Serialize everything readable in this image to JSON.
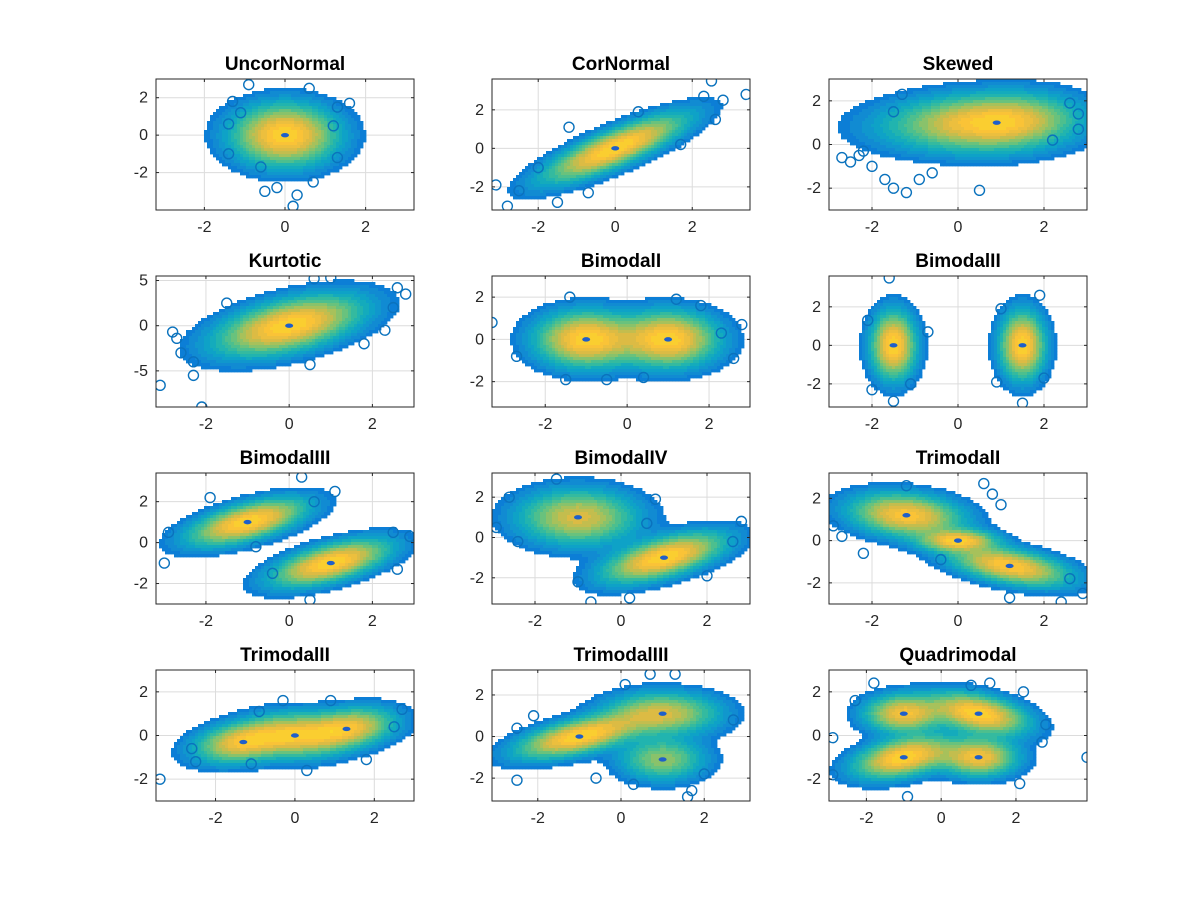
{
  "chart_data": [
    {
      "type": "scatter",
      "title": "UncorNormal",
      "xlim": [
        -3.2,
        3.2
      ],
      "ylim": [
        -4,
        3
      ],
      "xticks": [
        -2,
        0,
        2
      ],
      "xticklabels": [
        "-2",
        "0",
        "2"
      ],
      "yticks": [
        -2,
        0,
        2
      ],
      "yticklabels": [
        "-2",
        "0",
        "2"
      ],
      "grid": true,
      "components": [
        {
          "mx": 0,
          "my": 0,
          "sx": 0.75,
          "sy": 0.95,
          "rho": 0,
          "w": 1
        }
      ],
      "outliers": [
        [
          -0.9,
          2.7
        ],
        [
          -1.3,
          1.8
        ],
        [
          1.6,
          1.7
        ],
        [
          1.3,
          1.5
        ],
        [
          -1.1,
          1.2
        ],
        [
          -1.4,
          0.6
        ],
        [
          1.3,
          -1.2
        ],
        [
          -1.4,
          -1.0
        ],
        [
          0.7,
          -2.5
        ],
        [
          -0.5,
          -3.0
        ],
        [
          0.3,
          -3.2
        ],
        [
          0.2,
          -3.8
        ],
        [
          -0.2,
          -2.8
        ],
        [
          0.6,
          2.5
        ],
        [
          -0.6,
          -1.7
        ],
        [
          1.2,
          0.5
        ]
      ]
    },
    {
      "type": "scatter",
      "title": "CorNormal",
      "xlim": [
        -3.2,
        3.5
      ],
      "ylim": [
        -3.2,
        3.6
      ],
      "xticks": [
        -2,
        0,
        2
      ],
      "xticklabels": [
        "-2",
        "0",
        "2"
      ],
      "yticks": [
        -2,
        0,
        2
      ],
      "yticklabels": [
        "-2",
        "0",
        "2"
      ],
      "grid": true,
      "components": [
        {
          "mx": 0,
          "my": 0,
          "sx": 1.05,
          "sy": 1.0,
          "rho": 0.82,
          "w": 1
        }
      ],
      "outliers": [
        [
          3.4,
          2.8
        ],
        [
          2.5,
          3.5
        ],
        [
          2.8,
          2.5
        ],
        [
          2.3,
          2.7
        ],
        [
          -2.8,
          -3.0
        ],
        [
          -3.1,
          -1.9
        ],
        [
          -2.5,
          -2.2
        ],
        [
          -1.5,
          -2.8
        ],
        [
          -0.7,
          -2.3
        ],
        [
          0.6,
          1.9
        ],
        [
          1.7,
          0.2
        ],
        [
          -1.2,
          1.1
        ],
        [
          -2.0,
          -1.0
        ],
        [
          2.6,
          1.5
        ]
      ]
    },
    {
      "type": "scatter",
      "title": "Skewed",
      "xlim": [
        -3,
        3
      ],
      "ylim": [
        -3,
        3
      ],
      "xticks": [
        -2,
        0,
        2
      ],
      "xticklabels": [
        "-2",
        "0",
        "2"
      ],
      "yticks": [
        -2,
        0,
        2
      ],
      "yticklabels": [
        "-2",
        "0",
        "2"
      ],
      "grid": true,
      "components": [
        {
          "mx": 0.9,
          "my": 1.0,
          "sx": 1.05,
          "sy": 0.75,
          "rho": 0.1,
          "w": 1,
          "skewL": true
        }
      ],
      "outliers": [
        [
          -2.7,
          -0.6
        ],
        [
          -2.3,
          -0.5
        ],
        [
          -2.0,
          -1.0
        ],
        [
          -1.7,
          -1.6
        ],
        [
          -1.5,
          -2.0
        ],
        [
          -1.2,
          -2.2
        ],
        [
          -0.9,
          -1.6
        ],
        [
          -2.2,
          -0.3
        ],
        [
          -1.3,
          2.3
        ],
        [
          -1.5,
          1.5
        ],
        [
          2.8,
          1.4
        ],
        [
          2.8,
          0.7
        ],
        [
          2.6,
          1.9
        ],
        [
          2.2,
          0.2
        ],
        [
          -0.6,
          -1.3
        ],
        [
          0.5,
          -2.1
        ],
        [
          -2.5,
          -0.8
        ]
      ]
    },
    {
      "type": "scatter",
      "title": "Kurtotic",
      "xlim": [
        -3.2,
        3
      ],
      "ylim": [
        -9,
        5.5
      ],
      "xticks": [
        -2,
        0,
        2
      ],
      "xticklabels": [
        "-2",
        "0",
        "2"
      ],
      "yticks": [
        -5,
        0,
        5
      ],
      "yticklabels": [
        "-5",
        "0",
        "5"
      ],
      "grid": true,
      "components": [
        {
          "mx": 0,
          "my": 0,
          "sx": 1.0,
          "sy": 1.9,
          "rho": 0.5,
          "w": 1
        }
      ],
      "outliers": [
        [
          -3.1,
          -6.6
        ],
        [
          -2.1,
          -9.0
        ],
        [
          -2.3,
          -5.5
        ],
        [
          -2.6,
          -3.0
        ],
        [
          -2.7,
          -1.4
        ],
        [
          -2.8,
          -0.7
        ],
        [
          -2.3,
          -4.0
        ],
        [
          2.5,
          2.0
        ],
        [
          2.6,
          4.2
        ],
        [
          2.8,
          3.5
        ],
        [
          1.0,
          5.3
        ],
        [
          0.6,
          5.2
        ],
        [
          2.3,
          -0.5
        ],
        [
          1.8,
          -2.0
        ],
        [
          -1.5,
          2.5
        ],
        [
          0.5,
          -4.3
        ]
      ]
    },
    {
      "type": "scatter",
      "title": "BimodalI",
      "xlim": [
        -3.3,
        3
      ],
      "ylim": [
        -3.2,
        3
      ],
      "xticks": [
        -2,
        0,
        2
      ],
      "xticklabels": [
        "-2",
        "0",
        "2"
      ],
      "yticks": [
        -2,
        0,
        2
      ],
      "yticklabels": [
        "-2",
        "0",
        "2"
      ],
      "grid": true,
      "components": [
        {
          "mx": -1,
          "my": 0,
          "sx": 0.7,
          "sy": 0.75,
          "rho": 0,
          "w": 0.5
        },
        {
          "mx": 1,
          "my": 0,
          "sx": 0.7,
          "sy": 0.75,
          "rho": 0,
          "w": 0.5
        }
      ],
      "outliers": [
        [
          -3.3,
          0.8
        ],
        [
          2.8,
          0.7
        ],
        [
          -2.7,
          -0.8
        ],
        [
          2.6,
          -0.9
        ],
        [
          -1.4,
          2.0
        ],
        [
          1.2,
          1.9
        ],
        [
          -0.5,
          -1.9
        ],
        [
          0.4,
          -1.8
        ],
        [
          -1.5,
          -1.9
        ],
        [
          1.8,
          1.6
        ],
        [
          2.3,
          0.3
        ]
      ]
    },
    {
      "type": "scatter",
      "title": "BimodalII",
      "xlim": [
        -3,
        3
      ],
      "ylim": [
        -3.2,
        3.6
      ],
      "xticks": [
        -2,
        0,
        2
      ],
      "xticklabels": [
        "-2",
        "0",
        "2"
      ],
      "yticks": [
        -2,
        0,
        2
      ],
      "yticklabels": [
        "-2",
        "0",
        "2"
      ],
      "grid": true,
      "components": [
        {
          "mx": -1.5,
          "my": 0,
          "sx": 0.3,
          "sy": 1.0,
          "rho": 0,
          "w": 0.5
        },
        {
          "mx": 1.5,
          "my": 0,
          "sx": 0.3,
          "sy": 1.0,
          "rho": 0,
          "w": 0.5
        }
      ],
      "outliers": [
        [
          -1.6,
          3.5
        ],
        [
          -0.7,
          0.7
        ],
        [
          -2.1,
          1.3
        ],
        [
          -1.1,
          -2.0
        ],
        [
          -1.5,
          -2.9
        ],
        [
          1.5,
          -3.0
        ],
        [
          1.9,
          2.6
        ],
        [
          1.0,
          1.9
        ],
        [
          2.0,
          -1.7
        ],
        [
          0.9,
          -1.9
        ],
        [
          -2.0,
          -2.3
        ]
      ]
    },
    {
      "type": "scatter",
      "title": "BimodalIII",
      "xlim": [
        -3.2,
        3
      ],
      "ylim": [
        -3,
        3.4
      ],
      "xticks": [
        -2,
        0,
        2
      ],
      "xticklabels": [
        "-2",
        "0",
        "2"
      ],
      "yticks": [
        -2,
        0,
        2
      ],
      "yticklabels": [
        "-2",
        "0",
        "2"
      ],
      "grid": true,
      "components": [
        {
          "mx": -1,
          "my": 1,
          "sx": 0.8,
          "sy": 0.65,
          "rho": 0.6,
          "w": 0.5
        },
        {
          "mx": 1,
          "my": -1,
          "sx": 0.8,
          "sy": 0.65,
          "rho": 0.6,
          "w": 0.5
        }
      ],
      "outliers": [
        [
          -3.0,
          -1.0
        ],
        [
          -2.9,
          0.5
        ],
        [
          0.3,
          3.2
        ],
        [
          1.1,
          2.5
        ],
        [
          0.6,
          2.0
        ],
        [
          2.9,
          0.3
        ],
        [
          2.6,
          -1.3
        ],
        [
          0.5,
          -2.8
        ],
        [
          -0.4,
          -1.5
        ],
        [
          -1.9,
          2.2
        ],
        [
          2.5,
          0.5
        ],
        [
          -0.8,
          -0.2
        ]
      ]
    },
    {
      "type": "scatter",
      "title": "BimodalIV",
      "xlim": [
        -3,
        3
      ],
      "ylim": [
        -3.3,
        3.2
      ],
      "xticks": [
        -2,
        0,
        2
      ],
      "xticklabels": [
        "-2",
        "0",
        "2"
      ],
      "yticks": [
        -2,
        0,
        2
      ],
      "yticklabels": [
        "-2",
        "0",
        "2"
      ],
      "grid": true,
      "components": [
        {
          "mx": -1,
          "my": 1,
          "sx": 0.8,
          "sy": 0.8,
          "rho": 0,
          "w": 0.5
        },
        {
          "mx": 1,
          "my": -1,
          "sx": 0.8,
          "sy": 0.7,
          "rho": 0.6,
          "w": 0.5
        }
      ],
      "outliers": [
        [
          -2.9,
          0.5
        ],
        [
          -2.6,
          2.0
        ],
        [
          -1.5,
          2.9
        ],
        [
          0.6,
          0.7
        ],
        [
          0.8,
          1.9
        ],
        [
          2.8,
          0.8
        ],
        [
          2.6,
          -0.2
        ],
        [
          -1.0,
          -2.2
        ],
        [
          -0.7,
          -3.2
        ],
        [
          0.2,
          -3.0
        ],
        [
          2.0,
          -1.9
        ],
        [
          -2.4,
          -0.2
        ]
      ]
    },
    {
      "type": "scatter",
      "title": "TrimodalI",
      "xlim": [
        -3,
        3
      ],
      "ylim": [
        -3,
        3.2
      ],
      "xticks": [
        -2,
        0,
        2
      ],
      "xticklabels": [
        "-2",
        "0",
        "2"
      ],
      "yticks": [
        -2,
        0,
        2
      ],
      "yticklabels": [
        "-2",
        "0",
        "2"
      ],
      "grid": true,
      "components": [
        {
          "mx": -1.2,
          "my": 1.2,
          "sx": 0.75,
          "sy": 0.6,
          "rho": -0.2,
          "w": 0.45
        },
        {
          "mx": 1.2,
          "my": -1.2,
          "sx": 0.8,
          "sy": 0.55,
          "rho": -0.5,
          "w": 0.4
        },
        {
          "mx": 0,
          "my": 0,
          "sx": 0.5,
          "sy": 0.3,
          "rho": 0,
          "w": 0.15
        }
      ],
      "outliers": [
        [
          -2.9,
          0.7
        ],
        [
          -2.7,
          0.2
        ],
        [
          -2.2,
          -0.6
        ],
        [
          -1.2,
          2.6
        ],
        [
          0.6,
          2.7
        ],
        [
          1.0,
          1.7
        ],
        [
          0.8,
          2.2
        ],
        [
          2.9,
          -2.5
        ],
        [
          2.6,
          -1.8
        ],
        [
          1.2,
          -2.7
        ],
        [
          2.4,
          -2.9
        ],
        [
          -0.4,
          -0.9
        ]
      ]
    },
    {
      "type": "scatter",
      "title": "TrimodalII",
      "xlim": [
        -3.5,
        3
      ],
      "ylim": [
        -3,
        3
      ],
      "xticks": [
        -2,
        0,
        2
      ],
      "xticklabels": [
        "-2",
        "0",
        "2"
      ],
      "yticks": [
        -2,
        0,
        2
      ],
      "yticklabels": [
        "-2",
        "0",
        "2"
      ],
      "grid": true,
      "components": [
        {
          "mx": -1.3,
          "my": -0.3,
          "sx": 0.7,
          "sy": 0.55,
          "rho": 0.3,
          "w": 0.34
        },
        {
          "mx": 0,
          "my": 0,
          "sx": 0.7,
          "sy": 0.6,
          "rho": 0,
          "w": 0.32
        },
        {
          "mx": 1.3,
          "my": 0.3,
          "sx": 0.7,
          "sy": 0.55,
          "rho": 0.3,
          "w": 0.34
        }
      ],
      "outliers": [
        [
          -3.4,
          -2.0
        ],
        [
          -2.5,
          -1.2
        ],
        [
          -2.6,
          -0.6
        ],
        [
          2.7,
          1.2
        ],
        [
          2.5,
          0.4
        ],
        [
          1.8,
          -1.1
        ],
        [
          -0.3,
          1.6
        ],
        [
          0.9,
          1.6
        ],
        [
          -1.1,
          -1.3
        ],
        [
          0.3,
          -1.6
        ],
        [
          -0.9,
          1.1
        ]
      ]
    },
    {
      "type": "scatter",
      "title": "TrimodalIII",
      "xlim": [
        -3.1,
        3.1
      ],
      "ylim": [
        -3.1,
        3.2
      ],
      "xticks": [
        -2,
        0,
        2
      ],
      "xticklabels": [
        "-2",
        "0",
        "2"
      ],
      "yticks": [
        -2,
        0,
        2
      ],
      "yticklabels": [
        "-2",
        "0",
        "2"
      ],
      "grid": true,
      "components": [
        {
          "mx": -1,
          "my": 0,
          "sx": 0.85,
          "sy": 0.6,
          "rho": 0.6,
          "w": 0.45
        },
        {
          "mx": 1,
          "my": 1.1,
          "sx": 0.8,
          "sy": 0.6,
          "rho": 0,
          "w": 0.35
        },
        {
          "mx": 1,
          "my": -1.1,
          "sx": 0.6,
          "sy": 0.6,
          "rho": 0,
          "w": 0.2
        }
      ],
      "outliers": [
        [
          -2.5,
          -2.1
        ],
        [
          -2.5,
          0.4
        ],
        [
          -2.1,
          1.0
        ],
        [
          0.1,
          2.5
        ],
        [
          0.7,
          3.0
        ],
        [
          1.3,
          3.0
        ],
        [
          2.7,
          0.8
        ],
        [
          2.0,
          -1.8
        ],
        [
          1.7,
          -2.6
        ],
        [
          1.6,
          -2.9
        ],
        [
          -0.6,
          -2.0
        ],
        [
          0.3,
          -2.3
        ]
      ]
    },
    {
      "type": "scatter",
      "title": "Quadrimodal",
      "xlim": [
        -3,
        3.9
      ],
      "ylim": [
        -3,
        3
      ],
      "xticks": [
        -2,
        0,
        2
      ],
      "xticklabels": [
        "-2",
        "0",
        "2"
      ],
      "yticks": [
        -2,
        0,
        2
      ],
      "yticklabels": [
        "-2",
        "0",
        "2"
      ],
      "grid": true,
      "components": [
        {
          "mx": -1,
          "my": -1,
          "sx": 0.75,
          "sy": 0.55,
          "rho": 0.4,
          "w": 0.3
        },
        {
          "mx": 1,
          "my": 1,
          "sx": 0.75,
          "sy": 0.55,
          "rho": -0.4,
          "w": 0.3
        },
        {
          "mx": -1,
          "my": 1,
          "sx": 0.6,
          "sy": 0.5,
          "rho": 0,
          "w": 0.2
        },
        {
          "mx": 1,
          "my": -1,
          "sx": 0.6,
          "sy": 0.5,
          "rho": 0,
          "w": 0.2
        }
      ],
      "outliers": [
        [
          3.9,
          -1.0
        ],
        [
          -2.9,
          -1.8
        ],
        [
          -2.9,
          -0.1
        ],
        [
          -2.3,
          1.6
        ],
        [
          -1.8,
          2.4
        ],
        [
          0.8,
          2.3
        ],
        [
          2.8,
          0.5
        ],
        [
          2.7,
          -0.3
        ],
        [
          1.3,
          2.4
        ],
        [
          -0.9,
          -2.8
        ],
        [
          2.1,
          -2.2
        ],
        [
          2.2,
          2.0
        ]
      ]
    }
  ]
}
